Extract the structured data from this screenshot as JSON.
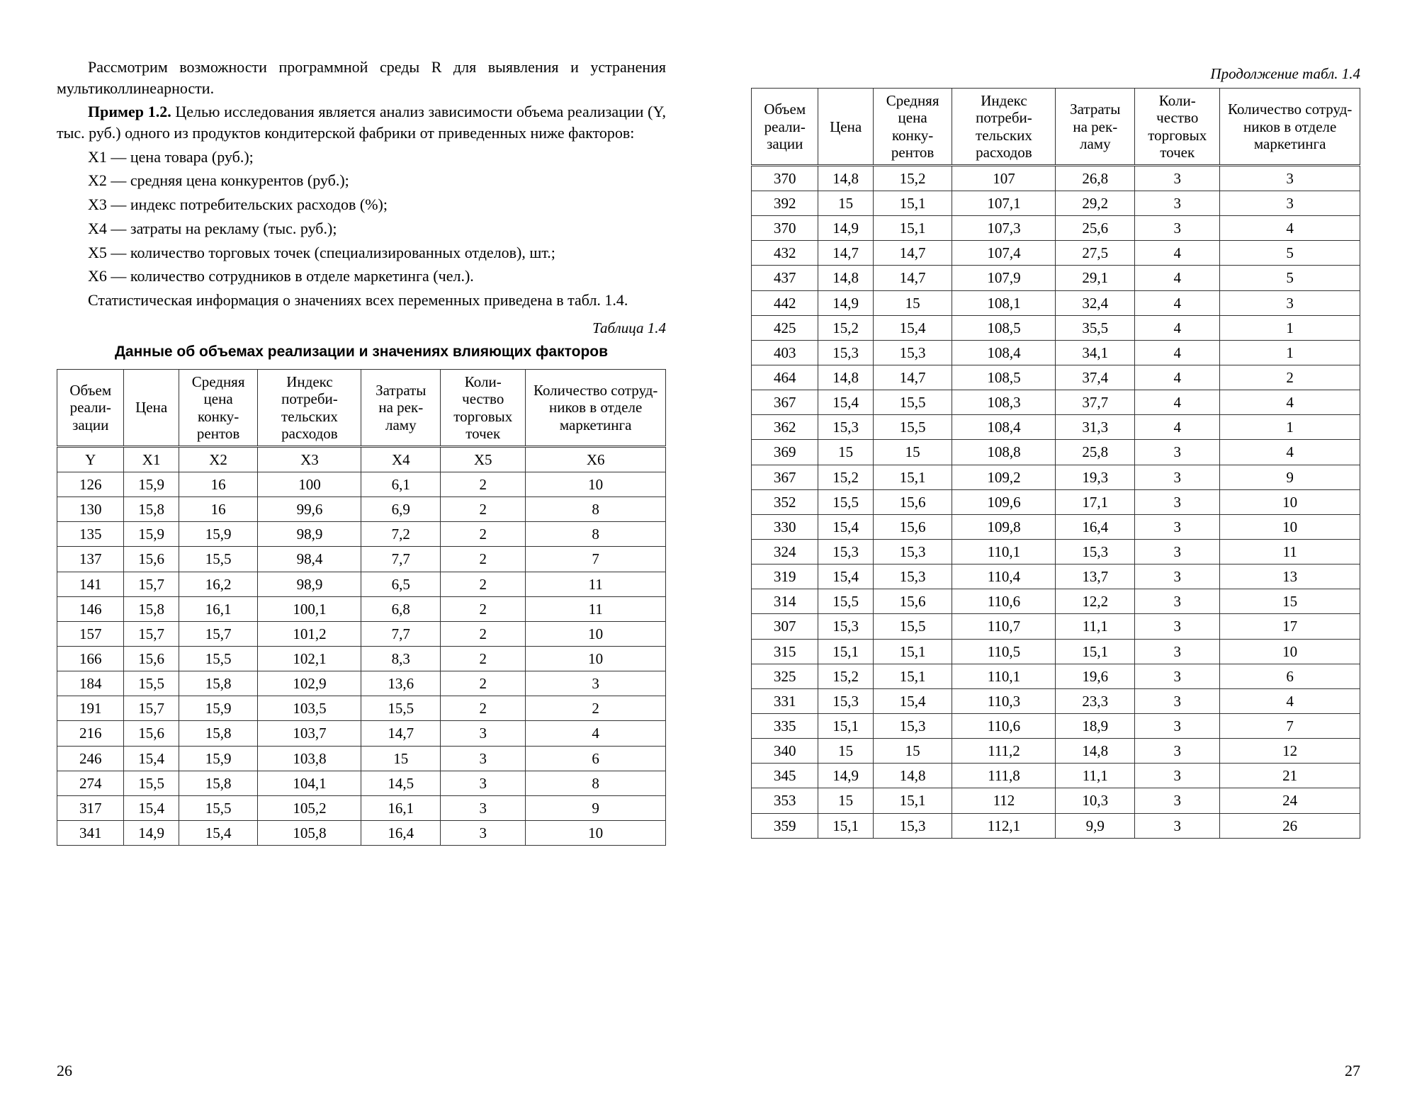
{
  "left": {
    "para1": "Рассмотрим возможности программной среды R для выявления и устранения мультиколлинеарности.",
    "para2_bold": "Пример 1.2.",
    "para2_rest": " Целью исследования является анализ зависимости объема реализации (Y, тыс. руб.) одного из продуктов кондитерской фабрики от приведенных ниже факторов:",
    "factors": [
      "X1 — цена товара (руб.);",
      "X2 — средняя цена конкурентов (руб.);",
      "X3 — индекс потребительских расходов (%);",
      "X4 — затраты на рекламу (тыс. руб.);",
      "X5 — количество торговых точек (специализированных отделов), шт.;",
      "X6 — количество сотрудников в отделе маркетинга (чел.)."
    ],
    "para3": "Статистическая информация о значениях всех переменных приведена в табл. 1.4.",
    "table_label": "Таблица 1.4",
    "table_caption": "Данные об объемах реализации и значениях влияющих факторов",
    "page_num": "26"
  },
  "right": {
    "cont_label": "Продолжение табл. 1.4",
    "page_num": "27"
  },
  "headers": [
    "Объем реали­зации",
    "Цена",
    "Средняя цена конку­рентов",
    "Индекс потреби­тельских расходов",
    "Затраты на рек­ламу",
    "Коли­чество торговых точек",
    "Количество сотруд­ников в от­деле марке­тинга"
  ],
  "var_row": [
    "Y",
    "X1",
    "X2",
    "X3",
    "X4",
    "X5",
    "X6"
  ],
  "table_left": {
    "rows": [
      [
        "126",
        "15,9",
        "16",
        "100",
        "6,1",
        "2",
        "10"
      ],
      [
        "130",
        "15,8",
        "16",
        "99,6",
        "6,9",
        "2",
        "8"
      ],
      [
        "135",
        "15,9",
        "15,9",
        "98,9",
        "7,2",
        "2",
        "8"
      ],
      [
        "137",
        "15,6",
        "15,5",
        "98,4",
        "7,7",
        "2",
        "7"
      ],
      [
        "141",
        "15,7",
        "16,2",
        "98,9",
        "6,5",
        "2",
        "11"
      ],
      [
        "146",
        "15,8",
        "16,1",
        "100,1",
        "6,8",
        "2",
        "11"
      ],
      [
        "157",
        "15,7",
        "15,7",
        "101,2",
        "7,7",
        "2",
        "10"
      ],
      [
        "166",
        "15,6",
        "15,5",
        "102,1",
        "8,3",
        "2",
        "10"
      ],
      [
        "184",
        "15,5",
        "15,8",
        "102,9",
        "13,6",
        "2",
        "3"
      ],
      [
        "191",
        "15,7",
        "15,9",
        "103,5",
        "15,5",
        "2",
        "2"
      ],
      [
        "216",
        "15,6",
        "15,8",
        "103,7",
        "14,7",
        "3",
        "4"
      ],
      [
        "246",
        "15,4",
        "15,9",
        "103,8",
        "15",
        "3",
        "6"
      ],
      [
        "274",
        "15,5",
        "15,8",
        "104,1",
        "14,5",
        "3",
        "8"
      ],
      [
        "317",
        "15,4",
        "15,5",
        "105,2",
        "16,1",
        "3",
        "9"
      ],
      [
        "341",
        "14,9",
        "15,4",
        "105,8",
        "16,4",
        "3",
        "10"
      ]
    ]
  },
  "table_right": {
    "rows": [
      [
        "370",
        "14,8",
        "15,2",
        "107",
        "26,8",
        "3",
        "3"
      ],
      [
        "392",
        "15",
        "15,1",
        "107,1",
        "29,2",
        "3",
        "3"
      ],
      [
        "370",
        "14,9",
        "15,1",
        "107,3",
        "25,6",
        "3",
        "4"
      ],
      [
        "432",
        "14,7",
        "14,7",
        "107,4",
        "27,5",
        "4",
        "5"
      ],
      [
        "437",
        "14,8",
        "14,7",
        "107,9",
        "29,1",
        "4",
        "5"
      ],
      [
        "442",
        "14,9",
        "15",
        "108,1",
        "32,4",
        "4",
        "3"
      ],
      [
        "425",
        "15,2",
        "15,4",
        "108,5",
        "35,5",
        "4",
        "1"
      ],
      [
        "403",
        "15,3",
        "15,3",
        "108,4",
        "34,1",
        "4",
        "1"
      ],
      [
        "464",
        "14,8",
        "14,7",
        "108,5",
        "37,4",
        "4",
        "2"
      ],
      [
        "367",
        "15,4",
        "15,5",
        "108,3",
        "37,7",
        "4",
        "4"
      ],
      [
        "362",
        "15,3",
        "15,5",
        "108,4",
        "31,3",
        "4",
        "1"
      ],
      [
        "369",
        "15",
        "15",
        "108,8",
        "25,8",
        "3",
        "4"
      ],
      [
        "367",
        "15,2",
        "15,1",
        "109,2",
        "19,3",
        "3",
        "9"
      ],
      [
        "352",
        "15,5",
        "15,6",
        "109,6",
        "17,1",
        "3",
        "10"
      ],
      [
        "330",
        "15,4",
        "15,6",
        "109,8",
        "16,4",
        "3",
        "10"
      ],
      [
        "324",
        "15,3",
        "15,3",
        "110,1",
        "15,3",
        "3",
        "11"
      ],
      [
        "319",
        "15,4",
        "15,3",
        "110,4",
        "13,7",
        "3",
        "13"
      ],
      [
        "314",
        "15,5",
        "15,6",
        "110,6",
        "12,2",
        "3",
        "15"
      ],
      [
        "307",
        "15,3",
        "15,5",
        "110,7",
        "11,1",
        "3",
        "17"
      ],
      [
        "315",
        "15,1",
        "15,1",
        "110,5",
        "15,1",
        "3",
        "10"
      ],
      [
        "325",
        "15,2",
        "15,1",
        "110,1",
        "19,6",
        "3",
        "6"
      ],
      [
        "331",
        "15,3",
        "15,4",
        "110,3",
        "23,3",
        "3",
        "4"
      ],
      [
        "335",
        "15,1",
        "15,3",
        "110,6",
        "18,9",
        "3",
        "7"
      ],
      [
        "340",
        "15",
        "15",
        "111,2",
        "14,8",
        "3",
        "12"
      ],
      [
        "345",
        "14,9",
        "14,8",
        "111,8",
        "11,1",
        "3",
        "21"
      ],
      [
        "353",
        "15",
        "15,1",
        "112",
        "10,3",
        "3",
        "24"
      ],
      [
        "359",
        "15,1",
        "15,3",
        "112,1",
        "9,9",
        "3",
        "26"
      ]
    ]
  },
  "col_classes": [
    "col-y",
    "col-x1",
    "col-x2",
    "col-x3",
    "col-x4",
    "col-x5",
    "col-x6"
  ]
}
